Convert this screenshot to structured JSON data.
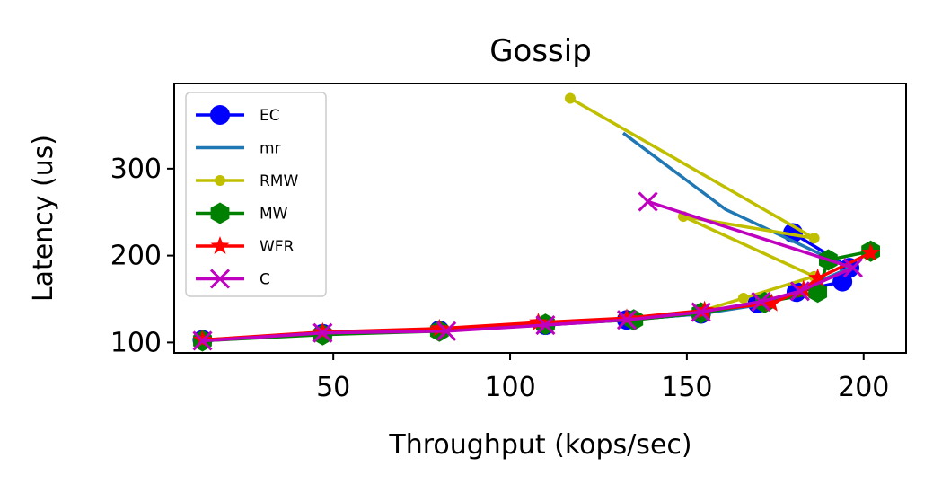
{
  "chart_data": {
    "type": "line",
    "title": "Gossip",
    "xlabel": "Throughput (kops/sec)",
    "ylabel": "Latency (us)",
    "xlim": [
      5,
      212
    ],
    "ylim": [
      88,
      398
    ],
    "xticks": [
      50,
      100,
      150,
      200
    ],
    "yticks": [
      100,
      200,
      300
    ],
    "xtick_labels": [
      "50",
      "100",
      "150",
      "200"
    ],
    "ytick_labels": [
      "100",
      "200",
      "300"
    ],
    "grid": false,
    "legend_position": "top-left",
    "series": [
      {
        "name": "EC",
        "color": "#0000ff",
        "marker": "circle",
        "x": [
          13,
          47,
          80,
          110,
          133,
          154,
          170,
          181,
          194,
          196,
          180
        ],
        "y": [
          103,
          110,
          114,
          120,
          126,
          133,
          145,
          158,
          170,
          186,
          226
        ]
      },
      {
        "name": "mr",
        "color": "#1f77b4",
        "marker": "none",
        "x": [
          13,
          47,
          80,
          110,
          133,
          154,
          170,
          181,
          190,
          196,
          161,
          132
        ],
        "y": [
          102,
          110,
          114,
          121,
          126,
          133,
          143,
          158,
          175,
          186,
          253,
          341
        ]
      },
      {
        "name": "RMW",
        "color": "#bfbf00",
        "marker": "small-circle",
        "x": [
          13,
          47,
          80,
          110,
          133,
          154,
          166,
          186,
          149,
          186,
          117
        ],
        "y": [
          102,
          110,
          114,
          121,
          127,
          136,
          151,
          176,
          245,
          220,
          381
        ]
      },
      {
        "name": "MW",
        "color": "#008000",
        "marker": "hexagon",
        "x": [
          13,
          47,
          80,
          110,
          135,
          154,
          172,
          187,
          190,
          202
        ],
        "y": [
          102,
          109,
          113,
          121,
          126,
          134,
          146,
          158,
          195,
          205
        ]
      },
      {
        "name": "WFR",
        "color": "#ff0000",
        "marker": "star",
        "x": [
          13,
          47,
          80,
          108,
          133,
          155,
          174,
          183,
          187,
          202
        ],
        "y": [
          103,
          112,
          116,
          123,
          128,
          137,
          145,
          161,
          174,
          203
        ]
      },
      {
        "name": "C",
        "color": "#bf00bf",
        "marker": "x",
        "x": [
          13,
          47,
          82,
          110,
          133,
          154,
          171,
          182,
          197,
          139
        ],
        "y": [
          102,
          111,
          113,
          120,
          126,
          135,
          147,
          159,
          186,
          262
        ]
      }
    ]
  }
}
